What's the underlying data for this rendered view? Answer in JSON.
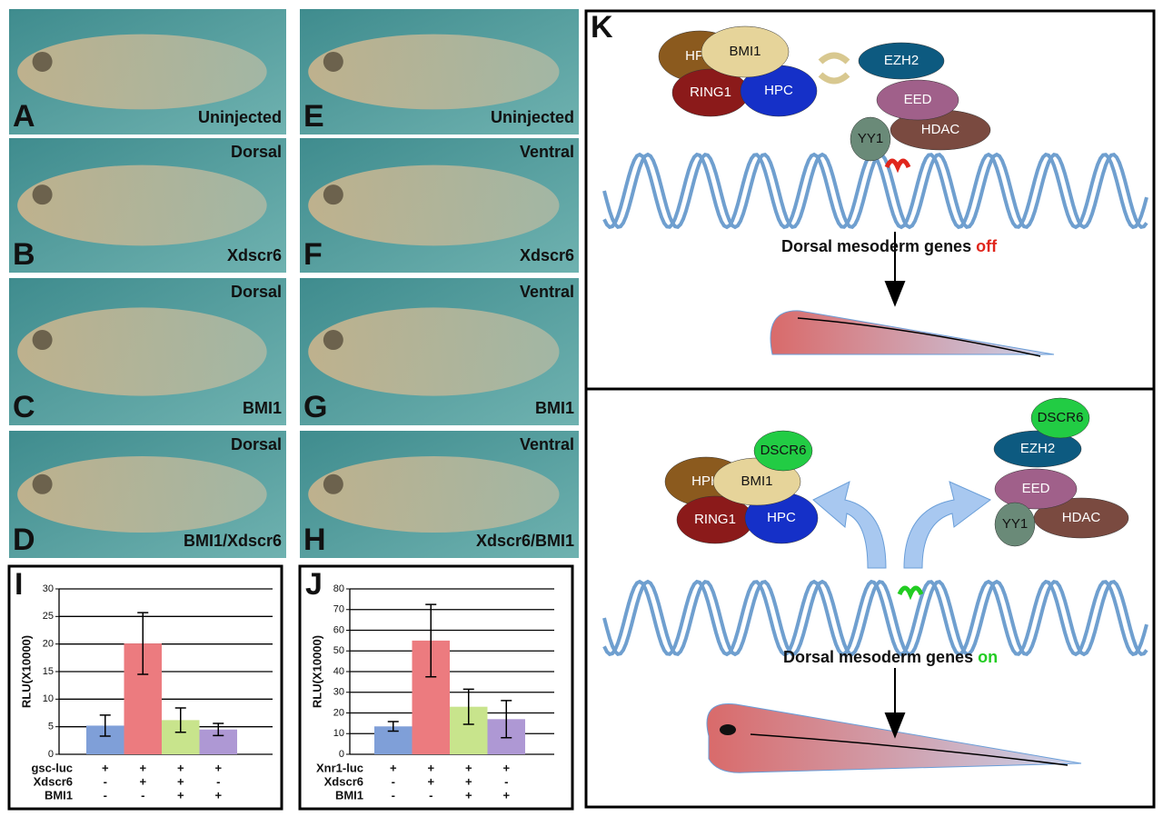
{
  "panels": [
    {
      "letter": "A",
      "bottom": "Uninjected"
    },
    {
      "letter": "B",
      "top": "Dorsal",
      "bottom": "Xdscr6"
    },
    {
      "letter": "C",
      "top": "Dorsal",
      "bottom": "BMI1"
    },
    {
      "letter": "D",
      "top": "Dorsal",
      "bottom": "BMI1/Xdscr6"
    },
    {
      "letter": "E",
      "bottom": "Uninjected"
    },
    {
      "letter": "F",
      "top": "Ventral",
      "bottom": "Xdscr6"
    },
    {
      "letter": "G",
      "top": "Ventral",
      "bottom": "BMI1"
    },
    {
      "letter": "H",
      "top": "Ventral",
      "bottom": "Xdscr6/BMI1"
    }
  ],
  "chart_data": [
    {
      "type": "bar",
      "letter": "I",
      "y_label": "RLU(X10000)",
      "ylim": [
        0,
        30
      ],
      "yticks": [
        0,
        5,
        10,
        15,
        20,
        25,
        30
      ],
      "grid": true,
      "values": [
        5.2,
        20.1,
        6.2,
        4.5
      ],
      "errors": [
        1.9,
        5.6,
        2.2,
        1.1
      ],
      "colors": [
        "#7f9fd8",
        "#ec7b7f",
        "#c8e48c",
        "#ae98d4"
      ],
      "rows": [
        {
          "label": "gsc-luc",
          "signs": [
            "+",
            "+",
            "+",
            "+"
          ]
        },
        {
          "label": "Xdscr6",
          "signs": [
            "-",
            "+",
            "+",
            "-"
          ]
        },
        {
          "label": "BMI1",
          "signs": [
            "-",
            "-",
            "+",
            "+"
          ]
        }
      ]
    },
    {
      "type": "bar",
      "letter": "J",
      "y_label": "RLU(X10000)",
      "ylim": [
        0,
        80
      ],
      "yticks": [
        0,
        10,
        20,
        30,
        40,
        50,
        60,
        70,
        80
      ],
      "grid": true,
      "values": [
        13.5,
        55,
        23,
        17
      ],
      "errors": [
        2.3,
        17.5,
        8.5,
        9
      ],
      "colors": [
        "#7f9fd8",
        "#ec7b7f",
        "#c8e48c",
        "#ae98d4"
      ],
      "rows": [
        {
          "label": "Xnr1-luc",
          "signs": [
            "+",
            "+",
            "+",
            "+"
          ]
        },
        {
          "label": "Xdscr6",
          "signs": [
            "-",
            "+",
            "+",
            "-"
          ]
        },
        {
          "label": "BMI1",
          "signs": [
            "-",
            "-",
            "+",
            "+"
          ]
        }
      ]
    }
  ],
  "diagram": {
    "letter": "K",
    "top": {
      "nodes": [
        {
          "label": "HPH",
          "color": "#8b5a1e"
        },
        {
          "label": "RING1",
          "color": "#8b1a1a"
        },
        {
          "label": "HPC",
          "color": "#1530c8"
        },
        {
          "label": "BMI1",
          "color": "#e6d49a"
        },
        {
          "label": "EZH2",
          "color": "#0d5a80"
        },
        {
          "label": "HDAC",
          "color": "#7a4a40"
        },
        {
          "label": "EED",
          "color": "#a0608a"
        },
        {
          "label": "YY1",
          "color": "#6a8a78"
        }
      ],
      "caption": "Dorsal mesoderm genes",
      "state": "off",
      "state_color": "#e0261c"
    },
    "bottom": {
      "nodes": [
        {
          "label": "HPH",
          "color": "#8b5a1e"
        },
        {
          "label": "RING1",
          "color": "#8b1a1a"
        },
        {
          "label": "HPC",
          "color": "#1530c8"
        },
        {
          "label": "BMI1",
          "color": "#e6d49a"
        },
        {
          "label": "DSCR6",
          "color": "#22cc44"
        },
        {
          "label": "HDAC",
          "color": "#7a4a40"
        },
        {
          "label": "EED",
          "color": "#a0608a"
        },
        {
          "label": "YY1",
          "color": "#6a8a78"
        },
        {
          "label": "EZH2",
          "color": "#0d5a80"
        },
        {
          "label": "DSCR6",
          "color": "#22cc44"
        }
      ],
      "caption": "Dorsal mesoderm genes",
      "state": "on",
      "state_color": "#22cc22"
    }
  }
}
